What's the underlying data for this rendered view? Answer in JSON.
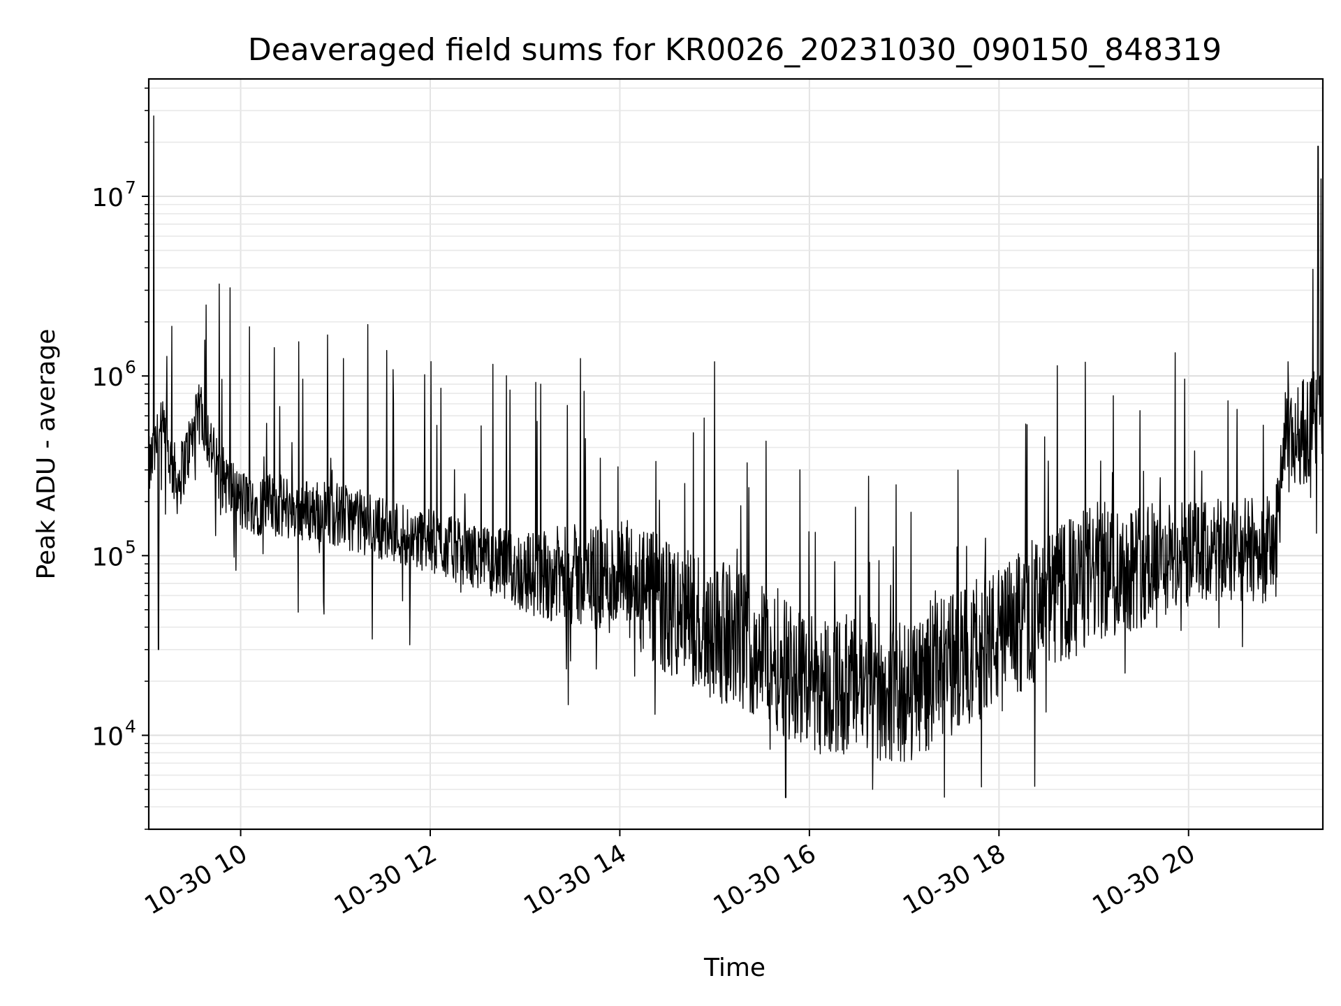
{
  "chart_data": {
    "type": "line",
    "title": "Deaveraged field sums for KR0026_20231030_090150_848319",
    "xlabel": "Time",
    "ylabel": "Peak ADU - average",
    "y_scale": "log",
    "ylim": [
      3000,
      45000000
    ],
    "xlim": [
      "2023-10-30T09:01:50",
      "2023-10-30T21:25:00"
    ],
    "grid": true,
    "line_color": "#000000",
    "x_ticks": [
      {
        "label": "10-30 10",
        "time": "2023-10-30T10:00:00"
      },
      {
        "label": "10-30 12",
        "time": "2023-10-30T12:00:00"
      },
      {
        "label": "10-30 14",
        "time": "2023-10-30T14:00:00"
      },
      {
        "label": "10-30 16",
        "time": "2023-10-30T16:00:00"
      },
      {
        "label": "10-30 18",
        "time": "2023-10-30T18:00:00"
      },
      {
        "label": "10-30 20",
        "time": "2023-10-30T20:00:00"
      }
    ],
    "y_ticks": [
      {
        "base": "10",
        "exp": "4",
        "value": 10000
      },
      {
        "base": "10",
        "exp": "5",
        "value": 100000
      },
      {
        "base": "10",
        "exp": "6",
        "value": 1000000
      },
      {
        "base": "10",
        "exp": "7",
        "value": 10000000
      }
    ],
    "series": [
      {
        "trend": [
          [
            "2023-10-30T09:01:50",
            300000
          ],
          [
            "2023-10-30T09:10:00",
            500000
          ],
          [
            "2023-10-30T09:20:00",
            250000
          ],
          [
            "2023-10-30T09:35:00",
            650000
          ],
          [
            "2023-10-30T09:45:00",
            300000
          ],
          [
            "2023-10-30T10:00:00",
            200000
          ],
          [
            "2023-10-30T11:00:00",
            170000
          ],
          [
            "2023-10-30T12:00:00",
            120000
          ],
          [
            "2023-10-30T13:00:00",
            80000
          ],
          [
            "2023-10-30T14:00:00",
            75000
          ],
          [
            "2023-10-30T14:30:00",
            50000
          ],
          [
            "2023-10-30T15:30:00",
            30000
          ],
          [
            "2023-10-30T16:00:00",
            20000
          ],
          [
            "2023-10-30T17:00:00",
            17000
          ],
          [
            "2023-10-30T17:30:00",
            25000
          ],
          [
            "2023-10-30T18:00:00",
            35000
          ],
          [
            "2023-10-30T19:00:00",
            80000
          ],
          [
            "2023-10-30T20:00:00",
            100000
          ],
          [
            "2023-10-30T20:55:00",
            110000
          ],
          [
            "2023-10-30T21:00:00",
            400000
          ],
          [
            "2023-10-30T21:25:00",
            600000
          ]
        ],
        "spikes": [
          [
            "2023-10-30T09:05:00",
            28000000
          ],
          [
            "2023-10-30T09:08:00",
            30000
          ],
          [
            "2023-10-30T11:05:00",
            1250000
          ],
          [
            "2023-10-30T13:10:00",
            900000
          ],
          [
            "2023-10-30T13:35:00",
            1250000
          ],
          [
            "2023-10-30T15:00:00",
            1200000
          ],
          [
            "2023-10-30T15:45:00",
            4500
          ],
          [
            "2023-10-30T16:40:00",
            5000
          ],
          [
            "2023-10-30T21:03:00",
            1200000
          ],
          [
            "2023-10-30T21:22:00",
            19000000
          ]
        ]
      }
    ]
  }
}
